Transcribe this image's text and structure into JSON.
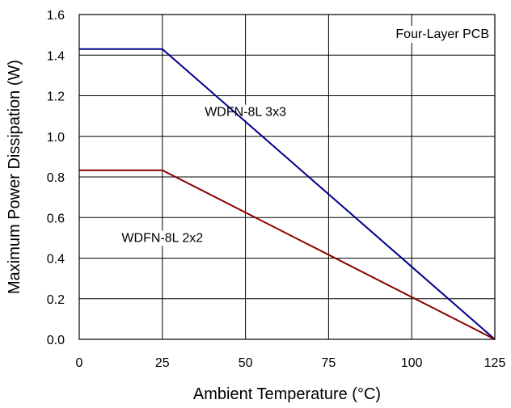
{
  "chart_data": {
    "type": "line",
    "xlabel": "Ambient Temperature (°C)",
    "ylabel": "Maximum Power Dissipation (W)",
    "xlim": [
      0,
      125
    ],
    "ylim": [
      0,
      1.6
    ],
    "xticks": [
      0,
      25,
      50,
      75,
      100,
      125
    ],
    "xtick_labels": [
      "0",
      "25",
      "50",
      "75",
      "100",
      "125"
    ],
    "yticks": [
      0,
      0.2,
      0.4,
      0.6,
      0.8,
      1.0,
      1.2,
      1.4,
      1.6
    ],
    "ytick_labels": [
      "0.0",
      "0.2",
      "0.4",
      "0.6",
      "0.8",
      "1.0",
      "1.2",
      "1.4",
      "1.6"
    ],
    "grid": true,
    "legend": "none",
    "annotation": "Four-Layer PCB",
    "series": [
      {
        "name": "WDFN-8L 3x3",
        "color": "#00008B",
        "x": [
          0,
          25,
          125
        ],
        "y": [
          1.43,
          1.43,
          0.0
        ],
        "label_x": 50,
        "label_y": 1.1
      },
      {
        "name": "WDFN-8L 2x2",
        "color": "#8B0000",
        "x": [
          0,
          25,
          125
        ],
        "y": [
          0.833,
          0.833,
          0.0
        ],
        "label_x": 25,
        "label_y": 0.48
      }
    ]
  }
}
